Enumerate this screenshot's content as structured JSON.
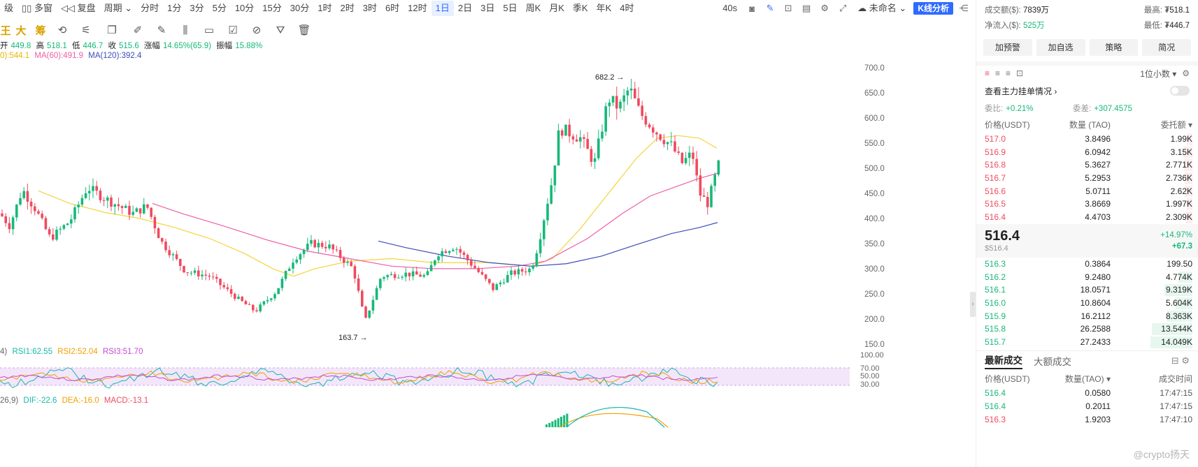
{
  "toolbar": {
    "items": [
      "级",
      "多窗",
      "复盘",
      "周期",
      "分时",
      "1分",
      "3分",
      "5分",
      "10分",
      "15分",
      "30分",
      "1时",
      "2时",
      "3时",
      "6时",
      "12时",
      "1日",
      "2日",
      "3日",
      "5日",
      "周K",
      "月K",
      "季K",
      "年K",
      "4时"
    ],
    "active_index": 16,
    "countdown": "40s",
    "template": "未命名",
    "kline_btn": "K线分析"
  },
  "drawbar": {
    "labels": [
      "王",
      "大",
      "筹"
    ]
  },
  "ohlc": {
    "open_label": "开",
    "open": "449.8",
    "high_label": "高",
    "high": "518.1",
    "low_label": "低",
    "low": "446.7",
    "close_label": "收",
    "close": "515.6",
    "chg_label": "涨幅",
    "chg": "14.65%(65.9)",
    "amp_label": "振幅",
    "amp": "15.88%"
  },
  "ma": {
    "ma20": "0):544.1",
    "ma60": "MA(60):491.9",
    "ma120": "MA(120):392.4",
    "colors": {
      "ma20": "#f5d33c",
      "ma60": "#ef5da8",
      "ma120": "#3b4db8"
    }
  },
  "rsi": {
    "prefix": "4)",
    "rsi1": "RSI1:62.55",
    "rsi2": "RSI2:52.04",
    "rsi3": "RSI3:51.70",
    "ticks": [
      "100.00",
      "70.00",
      "50.00",
      "30.00"
    ]
  },
  "macd": {
    "prefix": "26,9)",
    "dif": "DIF:-22.6",
    "dea": "DEA:-16.0",
    "macd": "MACD:-13.1"
  },
  "chart_data": {
    "type": "candlestick",
    "ylim": [
      140,
      710
    ],
    "yticks": [
      150,
      200,
      250,
      300,
      350,
      400,
      450,
      500,
      550,
      600,
      650,
      700
    ],
    "annotations": [
      {
        "label": "682.2 →",
        "value": 682.2
      },
      {
        "label": "163.7 →",
        "value": 163.7
      }
    ],
    "colors": {
      "up": "#16b979",
      "down": "#ef4b5f"
    }
  },
  "stats": {
    "volume_label": "成交额($):",
    "volume": "7839万",
    "high_label": "最高:",
    "high": "₮518.1",
    "inflow_label": "净流入($):",
    "inflow": "525万",
    "low_label": "最低:",
    "low": "₮446.7"
  },
  "buttons": [
    "加预警",
    "加自选",
    "策略",
    "简况"
  ],
  "orderbook": {
    "decimals": "1位小数",
    "watch": "查看主力挂单情况",
    "weibi_label": "委比:",
    "weibi": "+0.21%",
    "weicha_label": "委差:",
    "weicha": "+307.4575",
    "headers": [
      "价格(USDT)",
      "数量 (TAO)",
      "委托额"
    ],
    "asks": [
      {
        "p": "517.0",
        "q": "3.8496",
        "a": "1.99K",
        "d": 0.14
      },
      {
        "p": "516.9",
        "q": "6.0942",
        "a": "3.15K",
        "d": 0.22
      },
      {
        "p": "516.8",
        "q": "5.3627",
        "a": "2.771K",
        "d": 0.2
      },
      {
        "p": "516.7",
        "q": "5.2953",
        "a": "2.736K",
        "d": 0.19
      },
      {
        "p": "516.6",
        "q": "5.0711",
        "a": "2.62K",
        "d": 0.19
      },
      {
        "p": "516.5",
        "q": "3.8669",
        "a": "1.997K",
        "d": 0.14
      },
      {
        "p": "516.4",
        "q": "4.4703",
        "a": "2.309K",
        "d": 0.16
      }
    ],
    "last_price": "516.4",
    "last_usd": "$516.4",
    "last_pct": "+14.97%",
    "last_chg": "+67.3",
    "bids": [
      {
        "p": "516.3",
        "q": "0.3864",
        "a": "199.50",
        "d": 0.01
      },
      {
        "p": "516.2",
        "q": "9.2480",
        "a": "4.774K",
        "d": 0.34
      },
      {
        "p": "516.1",
        "q": "18.0571",
        "a": "9.319K",
        "d": 0.66
      },
      {
        "p": "516.0",
        "q": "10.8604",
        "a": "5.604K",
        "d": 0.4
      },
      {
        "p": "515.9",
        "q": "16.2112",
        "a": "8.363K",
        "d": 0.6
      },
      {
        "p": "515.8",
        "q": "26.2588",
        "a": "13.544K",
        "d": 0.96
      },
      {
        "p": "515.7",
        "q": "27.2433",
        "a": "14.049K",
        "d": 1.0
      }
    ]
  },
  "trades": {
    "tab_latest": "最新成交",
    "tab_big": "大额成交",
    "headers": [
      "价格(USDT)",
      "数量(TAO)",
      "成交时间"
    ],
    "rows": [
      {
        "p": "516.4",
        "q": "0.0580",
        "t": "17:47:15",
        "side": "buy"
      },
      {
        "p": "516.4",
        "q": "0.2011",
        "t": "17:47:15",
        "side": "buy"
      },
      {
        "p": "516.3",
        "q": "1.9203",
        "t": "17:47:10",
        "side": "sell"
      }
    ]
  },
  "watermark": "@crypto扬天"
}
